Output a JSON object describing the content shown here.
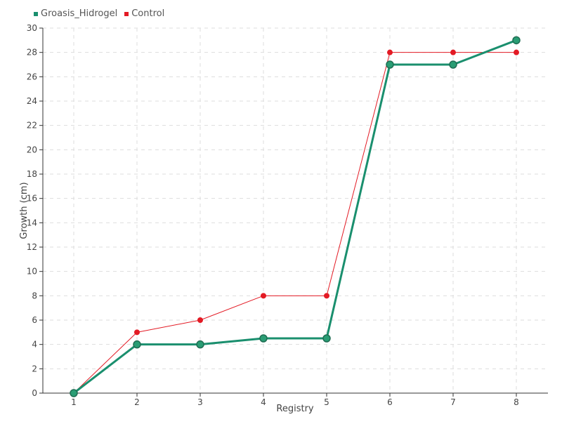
{
  "chart_data": {
    "type": "line",
    "xlabel": "Registry",
    "ylabel": "Growth (cm)",
    "categories": [
      "1",
      "2",
      "3",
      "4",
      "5",
      "6",
      "7",
      "8"
    ],
    "ylim": [
      0,
      30
    ],
    "yticks": [
      0,
      2,
      4,
      6,
      8,
      10,
      12,
      14,
      16,
      18,
      20,
      22,
      24,
      26,
      28,
      30
    ],
    "grid": true,
    "legend_position": "top-left",
    "series": [
      {
        "name": "Groasis_Hidrogel",
        "color": "#1a8f6e",
        "values": [
          0,
          4,
          4,
          4.5,
          4.5,
          27,
          27,
          29
        ]
      },
      {
        "name": "Control",
        "color": "#e31a24",
        "values": [
          0,
          5,
          6,
          8,
          8,
          28,
          28,
          28
        ]
      }
    ]
  }
}
